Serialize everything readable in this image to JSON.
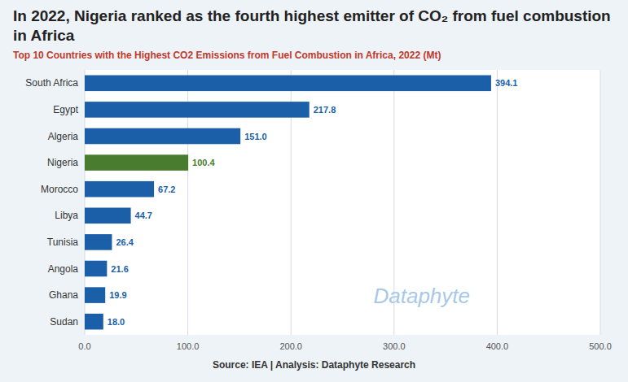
{
  "chart_data": {
    "type": "bar",
    "orientation": "horizontal",
    "title": "In 2022, Nigeria ranked as the fourth highest emitter of CO₂ from fuel combustion in Africa",
    "subtitle": "Top 10 Countries with the Highest CO2 Emissions from Fuel Combustion in Africa, 2022 (Mt)",
    "annotations": [
      "Dataphyte",
      "Source: IEA | Analysis: Dataphyte Research"
    ],
    "categories": [
      "South Africa",
      "Egypt",
      "Algeria",
      "Nigeria",
      "Morocco",
      "Libya",
      "Tunisia",
      "Angola",
      "Ghana",
      "Sudan"
    ],
    "values": [
      394.1,
      217.8,
      151.0,
      100.4,
      67.2,
      44.7,
      26.4,
      21.6,
      19.9,
      18.0
    ],
    "value_labels": [
      "394.1",
      "217.8",
      "151.0",
      "100.4",
      "67.2",
      "44.7",
      "26.4",
      "21.6",
      "19.9",
      "18.0"
    ],
    "colors": [
      "#1a5fa8",
      "#1a5fa8",
      "#1a5fa8",
      "#4a7c2f",
      "#1a5fa8",
      "#1a5fa8",
      "#1a5fa8",
      "#1a5fa8",
      "#1a5fa8",
      "#1a5fa8"
    ],
    "data_labels": true,
    "xlim": [
      0,
      500
    ],
    "xticks": [
      {
        "value": 0,
        "label": "0.0"
      },
      {
        "value": 100,
        "label": "100.0"
      },
      {
        "value": 200,
        "label": "200.0"
      },
      {
        "value": 300,
        "label": "300.0"
      },
      {
        "value": 400,
        "label": "400.0"
      },
      {
        "value": 500,
        "label": "500.0"
      }
    ],
    "grid": true
  }
}
